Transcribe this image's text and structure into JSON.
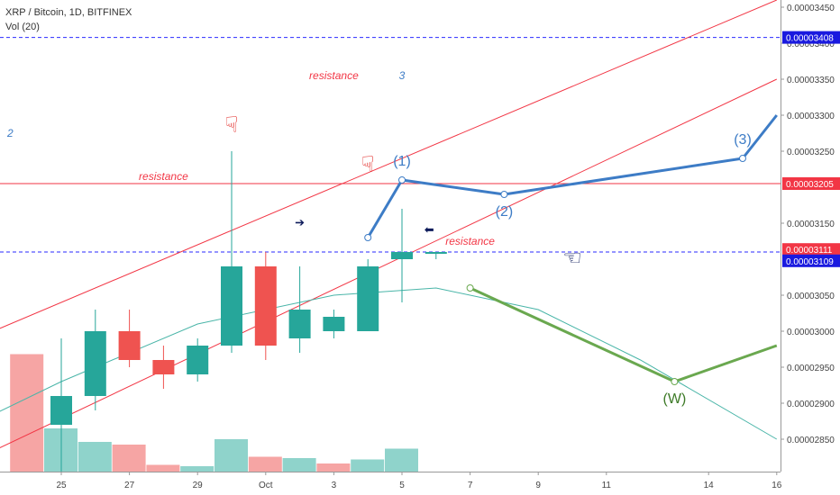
{
  "header": {
    "title": "XRP / Bitcoin, 1D, BITFINEX",
    "indicator": "Vol (20)"
  },
  "colors": {
    "up": "#26a69a",
    "down": "#ef5350",
    "vol_up": "#8fd3cb",
    "vol_down": "#f6a5a4",
    "channel": "#f23645",
    "blue_path": "#3d7cc6",
    "green_path": "#6aa84f",
    "arc": "#49b5a8",
    "price_tag_red": "#f23645",
    "price_tag_blue": "#1a1adf"
  },
  "chart_data": {
    "type": "candlestick",
    "symbol": "XRP / Bitcoin",
    "interval": "1D",
    "exchange": "BITFINEX",
    "price_axis": {
      "ticks": [
        "0.00003450",
        "0.00003400",
        "0.00003350",
        "0.00003300",
        "0.00003250",
        "0.00003150",
        "0.00003050",
        "0.00003000",
        "0.00002950",
        "0.00002900",
        "0.00002850"
      ],
      "range": [
        2.82e-05,
        3.46e-05
      ]
    },
    "x_axis": {
      "tick_labels": [
        "25",
        "27",
        "29",
        "Oct",
        "3",
        "5",
        "7",
        "9",
        "11",
        "14",
        "16"
      ],
      "tick_days": [
        25,
        27,
        29,
        31,
        33,
        35,
        37,
        39,
        41,
        44,
        46
      ]
    },
    "candles": [
      {
        "day": 25,
        "open": 2.87e-05,
        "high": 2.99e-05,
        "low": 2.78e-05,
        "close": 2.91e-05
      },
      {
        "day": 26,
        "open": 2.91e-05,
        "high": 3.03e-05,
        "low": 2.89e-05,
        "close": 3e-05
      },
      {
        "day": 27,
        "open": 3e-05,
        "high": 3.03e-05,
        "low": 2.95e-05,
        "close": 2.96e-05
      },
      {
        "day": 28,
        "open": 2.96e-05,
        "high": 2.98e-05,
        "low": 2.92e-05,
        "close": 2.94e-05
      },
      {
        "day": 29,
        "open": 2.94e-05,
        "high": 2.99e-05,
        "low": 2.93e-05,
        "close": 2.98e-05
      },
      {
        "day": 30,
        "open": 2.98e-05,
        "high": 3.25e-05,
        "low": 2.97e-05,
        "close": 3.09e-05
      },
      {
        "day": 31,
        "open": 3.09e-05,
        "high": 3.11e-05,
        "low": 2.96e-05,
        "close": 2.98e-05
      },
      {
        "day": 32,
        "open": 2.99e-05,
        "high": 3.09e-05,
        "low": 2.97e-05,
        "close": 3.03e-05
      },
      {
        "day": 33,
        "open": 3e-05,
        "high": 3.03e-05,
        "low": 2.99e-05,
        "close": 3.02e-05
      },
      {
        "day": 34,
        "open": 3e-05,
        "high": 3.1e-05,
        "low": 3e-05,
        "close": 3.09e-05
      },
      {
        "day": 35,
        "open": 3.1e-05,
        "high": 3.17e-05,
        "low": 3.04e-05,
        "close": 3.11e-05
      },
      {
        "day": 36,
        "open": 3.11e-05,
        "high": 3.11e-05,
        "low": 3.1e-05,
        "close": 3.11e-05
      }
    ],
    "volume": [
      {
        "day": 24,
        "rel": 0.87,
        "dir": "down"
      },
      {
        "day": 25,
        "rel": 0.32,
        "dir": "up"
      },
      {
        "day": 26,
        "rel": 0.22,
        "dir": "up"
      },
      {
        "day": 27,
        "rel": 0.2,
        "dir": "down"
      },
      {
        "day": 28,
        "rel": 0.05,
        "dir": "down"
      },
      {
        "day": 29,
        "rel": 0.04,
        "dir": "up"
      },
      {
        "day": 30,
        "rel": 0.24,
        "dir": "up"
      },
      {
        "day": 31,
        "rel": 0.11,
        "dir": "down"
      },
      {
        "day": 32,
        "rel": 0.1,
        "dir": "up"
      },
      {
        "day": 33,
        "rel": 0.06,
        "dir": "down"
      },
      {
        "day": 34,
        "rel": 0.09,
        "dir": "up"
      },
      {
        "day": 35,
        "rel": 0.17,
        "dir": "up"
      }
    ],
    "price_tags": [
      {
        "label": "0.00003408",
        "price": 3.408e-05,
        "color": "blue"
      },
      {
        "label": "0.00003205",
        "price": 3.205e-05,
        "color": "red"
      },
      {
        "label": "0.00003111",
        "price": 3.111e-05,
        "color": "red"
      },
      {
        "label": "0.00003109",
        "price": 3.109e-05,
        "color": "blue"
      }
    ],
    "channel_lines": [
      {
        "from": [
          21.5,
          2.97e-05
        ],
        "to": [
          46.0,
          3.46e-05
        ]
      },
      {
        "from": [
          21.5,
          2.8e-05
        ],
        "to": [
          46.0,
          3.35e-05
        ]
      }
    ],
    "horizontal_lines": [
      {
        "price": 3.408e-05,
        "style": "dashed",
        "color": "blue"
      },
      {
        "price": 3.205e-05,
        "style": "solid",
        "color": "red"
      },
      {
        "price": 3.11e-05,
        "style": "dashed",
        "color": "blue"
      }
    ],
    "blue_path": [
      {
        "day": 34,
        "price": 3.13e-05
      },
      {
        "day": 35,
        "price": 3.21e-05,
        "label": "(1)"
      },
      {
        "day": 38,
        "price": 3.19e-05,
        "label": "(2)"
      },
      {
        "day": 45,
        "price": 3.24e-05,
        "label": "(3)"
      },
      {
        "day": 46,
        "price": 3.3e-05
      }
    ],
    "green_path": [
      {
        "day": 37,
        "price": 3.06e-05
      },
      {
        "day": 43,
        "price": 2.93e-05,
        "label": "(W)"
      },
      {
        "day": 46,
        "price": 2.98e-05
      }
    ],
    "arc_points": [
      {
        "day": 21.5,
        "price": 2.85e-05
      },
      {
        "day": 25,
        "price": 2.93e-05
      },
      {
        "day": 29,
        "price": 3.01e-05
      },
      {
        "day": 33,
        "price": 3.05e-05
      },
      {
        "day": 36,
        "price": 3.06e-05
      },
      {
        "day": 39,
        "price": 3.03e-05
      },
      {
        "day": 42,
        "price": 2.96e-05
      },
      {
        "day": 46,
        "price": 2.85e-05
      }
    ],
    "annotations": [
      {
        "text": "resistance",
        "day": 33,
        "price": 3.35e-05,
        "color": "red",
        "size": 12
      },
      {
        "text": "3",
        "day": 35,
        "price": 3.35e-05,
        "color": "blue",
        "size": 12
      },
      {
        "text": "2",
        "day": 23.5,
        "price": 3.27e-05,
        "color": "blue",
        "size": 12
      },
      {
        "text": "resistance",
        "day": 28,
        "price": 3.21e-05,
        "color": "red",
        "size": 12
      },
      {
        "text": "resistance",
        "day": 37,
        "price": 3.12e-05,
        "color": "red",
        "size": 12
      },
      {
        "text": "(1)",
        "day": 35,
        "price": 3.23e-05,
        "color": "blue",
        "size": 16
      },
      {
        "text": "(2)",
        "day": 38,
        "price": 3.16e-05,
        "color": "blue",
        "size": 16
      },
      {
        "text": "(3)",
        "day": 45,
        "price": 3.26e-05,
        "color": "blue",
        "size": 16
      },
      {
        "text": "(W)",
        "day": 43,
        "price": 2.9e-05,
        "color": "green",
        "size": 16
      }
    ],
    "markers": [
      {
        "icon": "pointing-down-hand-icon",
        "day": 30,
        "price": 3.285e-05,
        "color": "red"
      },
      {
        "icon": "pointing-down-hand-icon",
        "day": 34,
        "price": 3.23e-05,
        "color": "red"
      },
      {
        "icon": "arrow-right-icon",
        "day": 32,
        "price": 3.15e-05,
        "color": "navy"
      },
      {
        "icon": "arrow-left-icon",
        "day": 35.8,
        "price": 3.14e-05,
        "color": "navy"
      },
      {
        "icon": "pointing-left-hand-icon",
        "day": 40,
        "price": 3.1e-05,
        "color": "navy"
      }
    ]
  }
}
